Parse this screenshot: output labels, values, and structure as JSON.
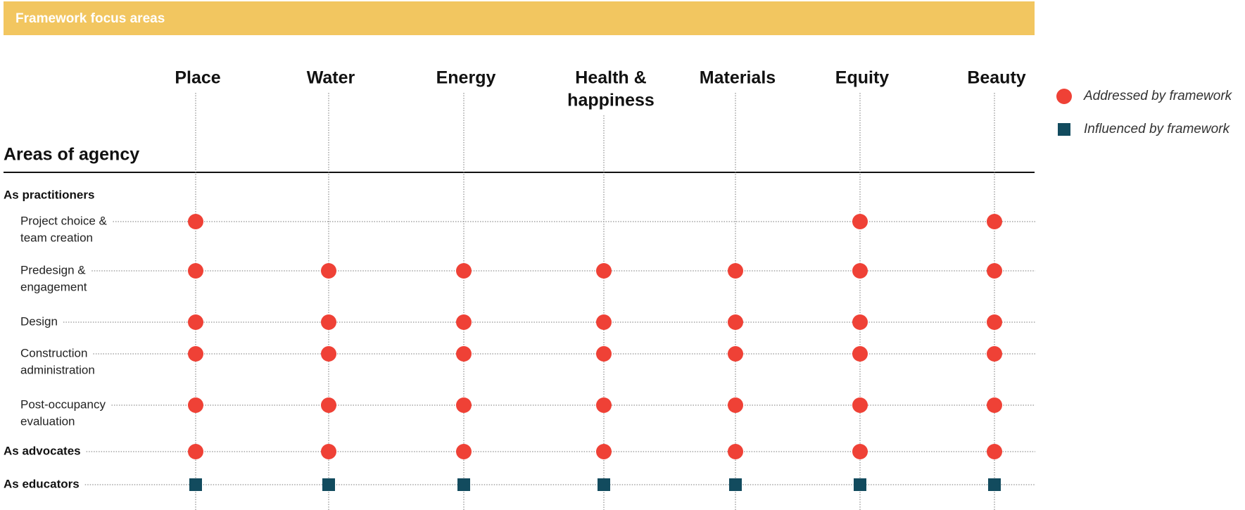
{
  "header": {
    "title": "Framework focus areas"
  },
  "columns": [
    [
      "Place"
    ],
    [
      "Water"
    ],
    [
      "Energy"
    ],
    [
      "Health &",
      "happiness"
    ],
    [
      "Materials"
    ],
    [
      "Equity"
    ],
    [
      "Beauty"
    ]
  ],
  "legend": [
    {
      "label": "Addressed by framework",
      "shape": "circle",
      "color": "#ef4136"
    },
    {
      "label": "Influenced by framework",
      "shape": "square",
      "color": "#124b5e"
    }
  ],
  "section": {
    "title": "Areas of agency"
  },
  "groups": [
    {
      "label": "As practitioners",
      "rows": [
        {
          "label": [
            "Project choice &",
            "team creation"
          ],
          "cells": [
            0,
            null,
            null,
            null,
            null,
            0,
            0
          ]
        },
        {
          "label": [
            "Predesign &",
            "engagement"
          ],
          "cells": [
            0,
            0,
            0,
            0,
            0,
            0,
            0
          ]
        },
        {
          "label": [
            "Design"
          ],
          "cells": [
            0,
            0,
            0,
            0,
            0,
            0,
            0
          ]
        },
        {
          "label": [
            "Construction",
            "administration"
          ],
          "cells": [
            0,
            0,
            0,
            0,
            0,
            0,
            0
          ]
        },
        {
          "label": [
            "Post-occupancy",
            "evaluation"
          ],
          "cells": [
            0,
            0,
            0,
            0,
            0,
            0,
            0
          ]
        }
      ]
    },
    {
      "label": "As advocates",
      "cells": [
        0,
        0,
        0,
        0,
        0,
        0,
        0
      ]
    },
    {
      "label": "As educators",
      "cells": [
        1,
        1,
        1,
        1,
        1,
        1,
        1
      ]
    }
  ]
}
